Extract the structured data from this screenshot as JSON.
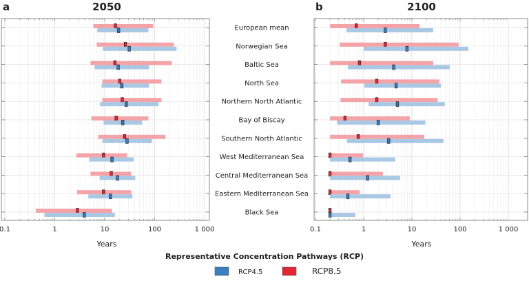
{
  "legend": {
    "title": "Representative Concentration Pathways (RCP)",
    "items": [
      {
        "label": "RCP4.5",
        "color": "#3a7fc1"
      },
      {
        "label": "RCP8.5",
        "color": "#e32631"
      }
    ]
  },
  "chart_data": [
    {
      "type": "range-bar",
      "panel_letter": "a",
      "title": "2050",
      "xlabel": "Years",
      "xscale": "log",
      "xlim": [
        0.1,
        1000
      ],
      "xticks": [
        "0.1",
        "1",
        "10",
        "100",
        "1 000"
      ],
      "grid": true,
      "categories": [
        "European mean",
        "Norwegian Sea",
        "Baltic Sea",
        "North Sea",
        "Northern North Atlantic",
        "Bay of Biscay",
        "Southern North Atlantic",
        "West Mediterranean Sea",
        "Central Mediterranean Sea",
        "Eastern Mediterranean Sea",
        "Black Sea"
      ],
      "series": [
        {
          "name": "RCP8.5",
          "color": "#e32631",
          "range_color": "#f4a3a8",
          "low": [
            5.9,
            6.9,
            5.2,
            9,
            9,
            5.4,
            7.4,
            2.7,
            5.2,
            2.8,
            0.42
          ],
          "median": [
            16.4,
            26,
            16,
            20,
            22.5,
            17,
            25,
            9.5,
            13.5,
            9.5,
            2.85
          ],
          "high": [
            94,
            243,
            220,
            137,
            137,
            75,
            165,
            28,
            34,
            34,
            14
          ]
        },
        {
          "name": "RCP4.5",
          "color": "#3a7fc1",
          "range_color": "#a9c8e4",
          "low": [
            7.1,
            9.2,
            6.3,
            8.7,
            8.1,
            9.5,
            9,
            4.9,
            7.9,
            4.7,
            0.62
          ],
          "median": [
            19,
            31,
            18.6,
            22,
            27,
            23,
            28,
            14,
            18,
            13,
            3.9
          ],
          "high": [
            75,
            275,
            77,
            77,
            120,
            56,
            88,
            38,
            41,
            36,
            16
          ]
        }
      ]
    },
    {
      "type": "range-bar",
      "panel_letter": "b",
      "title": "2100",
      "xlabel": "Years",
      "xscale": "log",
      "xlim": [
        0.1,
        1000
      ],
      "xticks": [
        "0.1",
        "1",
        "10",
        "100",
        "1 000"
      ],
      "grid": true,
      "categories": [
        "European mean",
        "Norwegian Sea",
        "Baltic Sea",
        "North Sea",
        "Northern North Atlantic",
        "Bay of Biscay",
        "Southern North Atlantic",
        "West Mediterranean Sea",
        "Central Mediterranean Sea",
        "Eastern Mediterranean Sea",
        "Black Sea"
      ],
      "series": [
        {
          "name": "RCP8.5",
          "color": "#e32631",
          "range_color": "#f4a3a8",
          "low": [
            0.2,
            0.32,
            0.2,
            0.34,
            0.33,
            0.2,
            0.2,
            0.2,
            0.2,
            0.2,
            0.2
          ],
          "median": [
            0.7,
            2.8,
            0.82,
            1.87,
            1.87,
            0.41,
            0.77,
            0.2,
            0.2,
            0.2,
            0.2
          ],
          "high": [
            14.4,
            93,
            27.7,
            37,
            34,
            9,
            18,
            0.97,
            2.5,
            0.82,
            0.2
          ]
        },
        {
          "name": "RCP4.5",
          "color": "#3a7fc1",
          "range_color": "#a9c8e4",
          "low": [
            0.44,
            1.0,
            0.47,
            1.03,
            1.26,
            0.28,
            0.45,
            0.2,
            0.2,
            0.2,
            0.2
          ],
          "median": [
            2.8,
            7.9,
            4.2,
            4.7,
            5.0,
            2.0,
            3.3,
            0.52,
            1.2,
            0.47,
            0.2
          ],
          "high": [
            27.7,
            148,
            61,
            40,
            48,
            19,
            45,
            4.5,
            5.7,
            3.6,
            0.67
          ]
        }
      ]
    }
  ]
}
